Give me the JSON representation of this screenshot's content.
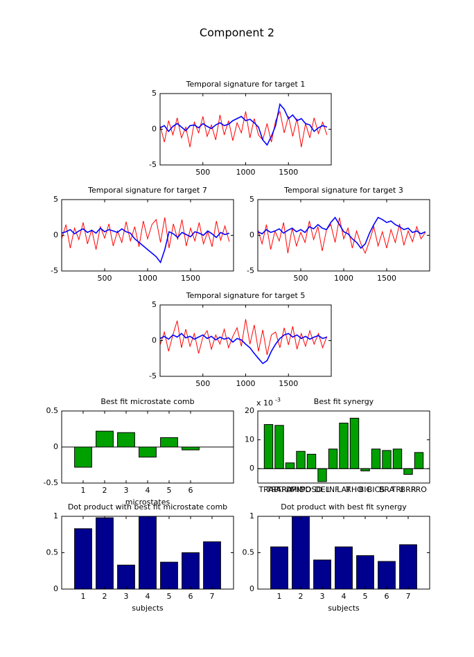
{
  "title": "Component 2",
  "chart_data": [
    {
      "type": "line",
      "title": "Temporal signature for target 1",
      "x": [
        0,
        50,
        100,
        150,
        200,
        250,
        300,
        350,
        400,
        450,
        500,
        550,
        600,
        650,
        700,
        750,
        800,
        850,
        900,
        950,
        1000,
        1050,
        1100,
        1150,
        1200,
        1250,
        1300,
        1350,
        1400,
        1450,
        1500,
        1550,
        1600,
        1650,
        1700,
        1750,
        1800,
        1850,
        1900,
        1950
      ],
      "xlim": [
        0,
        2000
      ],
      "xticks": [
        500,
        1000,
        1500
      ],
      "ylim": [
        -5,
        5
      ],
      "yticks": [
        -5,
        0,
        5
      ],
      "series": [
        {
          "color": "#ff0000",
          "values": [
            0.5,
            -1.8,
            1.2,
            -0.8,
            1.6,
            -1.2,
            0.3,
            -2.5,
            1.0,
            -0.5,
            1.8,
            -1.0,
            0.6,
            -1.5,
            2.0,
            -0.8,
            1.2,
            -1.6,
            0.9,
            -0.5,
            2.5,
            -1.2,
            1.5,
            -0.8,
            -1.5,
            0.8,
            -1.8,
            1.2,
            2.5,
            -0.5,
            1.8,
            -1.0,
            1.5,
            -2.5,
            0.8,
            -1.2,
            1.6,
            -0.6,
            1.0,
            -0.8
          ]
        },
        {
          "color": "#0000ff",
          "values": [
            0.2,
            0.5,
            -0.3,
            0.4,
            0.8,
            0.3,
            -0.2,
            0.5,
            0.6,
            0.2,
            0.8,
            0.4,
            0.1,
            0.6,
            0.9,
            0.5,
            0.7,
            1.2,
            1.5,
            1.8,
            1.2,
            1.4,
            0.9,
            0.3,
            -1.5,
            -2.2,
            -1.0,
            0.5,
            3.5,
            2.8,
            1.5,
            2.0,
            1.2,
            1.5,
            0.8,
            0.6,
            -0.3,
            0.2,
            0.5,
            0.3
          ]
        }
      ]
    },
    {
      "type": "line",
      "title": "Temporal signature for target 7",
      "x": [
        0,
        50,
        100,
        150,
        200,
        250,
        300,
        350,
        400,
        450,
        500,
        550,
        600,
        650,
        700,
        750,
        800,
        850,
        900,
        950,
        1000,
        1050,
        1100,
        1150,
        1200,
        1250,
        1300,
        1350,
        1400,
        1450,
        1500,
        1550,
        1600,
        1650,
        1700,
        1750,
        1800,
        1850,
        1900,
        1950
      ],
      "xlim": [
        0,
        2000
      ],
      "xticks": [
        500,
        1000,
        1500
      ],
      "ylim": [
        -5,
        5
      ],
      "yticks": [
        -5,
        0,
        5
      ],
      "series": [
        {
          "color": "#ff0000",
          "values": [
            -0.5,
            1.5,
            -1.8,
            1.0,
            -0.6,
            1.8,
            -1.2,
            0.8,
            -2.0,
            1.2,
            -0.4,
            1.6,
            -1.5,
            0.6,
            -1.0,
            1.9,
            -0.8,
            1.2,
            -1.6,
            2.0,
            -0.5,
            1.5,
            2.2,
            -1.0,
            2.5,
            -1.8,
            1.6,
            -0.6,
            2.2,
            -1.5,
            1.0,
            -0.8,
            1.8,
            -1.2,
            0.5,
            -1.6,
            2.0,
            -0.7,
            1.3,
            -0.9
          ]
        },
        {
          "color": "#0000ff",
          "values": [
            0.3,
            0.5,
            0.8,
            0.2,
            0.6,
            0.9,
            0.4,
            0.7,
            0.3,
            1.0,
            0.5,
            0.8,
            0.6,
            0.4,
            0.9,
            0.5,
            0.3,
            -0.5,
            -1.0,
            -1.5,
            -2.0,
            -2.5,
            -3.0,
            -3.8,
            -2.0,
            0.5,
            0.2,
            -0.3,
            0.4,
            0.1,
            -0.2,
            0.5,
            0.3,
            0.0,
            0.6,
            0.2,
            -0.3,
            0.4,
            0.1,
            0.3
          ]
        }
      ]
    },
    {
      "type": "line",
      "title": "Temporal signature for target 3",
      "x": [
        0,
        50,
        100,
        150,
        200,
        250,
        300,
        350,
        400,
        450,
        500,
        550,
        600,
        650,
        700,
        750,
        800,
        850,
        900,
        950,
        1000,
        1050,
        1100,
        1150,
        1200,
        1250,
        1300,
        1350,
        1400,
        1450,
        1500,
        1550,
        1600,
        1650,
        1700,
        1750,
        1800,
        1850,
        1900,
        1950
      ],
      "xlim": [
        0,
        2000
      ],
      "xticks": [
        500,
        1000,
        1500
      ],
      "ylim": [
        -5,
        5
      ],
      "yticks": [
        -5,
        0,
        5
      ],
      "series": [
        {
          "color": "#ff0000",
          "values": [
            0.8,
            -1.2,
            1.5,
            -2.0,
            0.6,
            -0.8,
            1.8,
            -2.5,
            1.0,
            -1.5,
            0.4,
            -1.0,
            2.0,
            -0.6,
            1.2,
            -2.2,
            0.8,
            1.5,
            -1.0,
            2.5,
            -0.5,
            1.0,
            -1.8,
            0.6,
            -1.2,
            -2.5,
            -0.8,
            1.2,
            -1.5,
            0.5,
            -1.8,
            0.8,
            -1.0,
            1.6,
            -1.4,
            0.6,
            -0.9,
            1.2,
            -0.5,
            0.4
          ]
        },
        {
          "color": "#0000ff",
          "values": [
            0.5,
            0.2,
            0.8,
            0.4,
            0.6,
            0.9,
            0.3,
            0.7,
            1.0,
            0.5,
            0.8,
            0.4,
            1.2,
            0.9,
            1.5,
            1.0,
            0.8,
            1.8,
            2.5,
            1.5,
            0.5,
            0.2,
            -0.5,
            -1.0,
            -1.8,
            -1.2,
            0.3,
            1.5,
            2.5,
            2.2,
            1.8,
            2.0,
            1.5,
            1.2,
            0.8,
            1.0,
            0.4,
            0.6,
            0.2,
            0.5
          ]
        }
      ]
    },
    {
      "type": "line",
      "title": "Temporal signature for target 5",
      "x": [
        0,
        50,
        100,
        150,
        200,
        250,
        300,
        350,
        400,
        450,
        500,
        550,
        600,
        650,
        700,
        750,
        800,
        850,
        900,
        950,
        1000,
        1050,
        1100,
        1150,
        1200,
        1250,
        1300,
        1350,
        1400,
        1450,
        1500,
        1550,
        1600,
        1650,
        1700,
        1750,
        1800,
        1850,
        1900,
        1950
      ],
      "xlim": [
        0,
        2000
      ],
      "xticks": [
        500,
        1000,
        1500
      ],
      "ylim": [
        -5,
        5
      ],
      "yticks": [
        -5,
        0,
        5
      ],
      "series": [
        {
          "color": "#ff0000",
          "values": [
            -0.6,
            1.2,
            -1.5,
            0.8,
            2.8,
            -1.0,
            1.6,
            -0.8,
            1.0,
            -1.8,
            0.5,
            1.4,
            -1.2,
            0.8,
            -0.5,
            1.6,
            -1.0,
            0.6,
            1.8,
            -0.8,
            3.0,
            -0.5,
            2.2,
            -1.5,
            1.5,
            -2.0,
            0.8,
            1.2,
            -1.0,
            1.8,
            -0.6,
            2.0,
            -1.2,
            1.0,
            -0.8,
            1.4,
            -0.5,
            1.0,
            -1.0,
            0.6
          ]
        },
        {
          "color": "#0000ff",
          "values": [
            0.3,
            0.6,
            0.2,
            0.8,
            0.5,
            1.0,
            0.4,
            0.6,
            0.2,
            0.5,
            0.8,
            0.3,
            0.6,
            0.1,
            0.5,
            0.2,
            0.4,
            -0.2,
            0.3,
            0.1,
            -0.5,
            -1.0,
            -1.8,
            -2.5,
            -3.2,
            -2.8,
            -1.5,
            -0.5,
            0.3,
            0.8,
            1.0,
            0.5,
            0.8,
            0.3,
            0.6,
            0.2,
            0.5,
            0.7,
            0.3,
            0.5
          ]
        }
      ]
    },
    {
      "type": "bar",
      "title": "Best fit microstate comb",
      "xlabel": "microstates",
      "x": [
        1,
        2,
        3,
        4,
        5,
        6
      ],
      "values": [
        -0.28,
        0.22,
        0.2,
        -0.14,
        0.13,
        -0.04
      ],
      "color": "#00a000",
      "xlim": [
        0,
        8
      ],
      "xticks": [
        1,
        2,
        3,
        4,
        5,
        6
      ],
      "ylim": [
        -0.5,
        0.5
      ],
      "yticks": [
        -0.5,
        0,
        0.5
      ]
    },
    {
      "type": "bar",
      "title": "Best fit synergy",
      "y_multiplier": {
        "base": "x 10",
        "exponent": "-3"
      },
      "categories": [
        "TRAP",
        "TRAPD",
        "TRAPM",
        "MIDD",
        "POSD",
        "DEL",
        "INF",
        "LAT",
        "RHO",
        "BIC",
        "BICS",
        "BRA",
        "TRI",
        "BRR",
        "PRO"
      ],
      "values": [
        15.3,
        15,
        2,
        6,
        5,
        -4.5,
        6.8,
        15.8,
        17.5,
        -0.8,
        6.8,
        6.3,
        6.8,
        -2,
        5.6
      ],
      "color": "#00a000",
      "xlim": [
        0,
        16
      ],
      "ylim": [
        -5,
        20
      ],
      "yticks": [
        0,
        10,
        20
      ]
    },
    {
      "type": "bar",
      "title": "Dot product with best fit microstate comb",
      "xlabel": "subjects",
      "x": [
        1,
        2,
        3,
        4,
        5,
        6,
        7
      ],
      "values": [
        0.83,
        0.98,
        0.33,
        1.0,
        0.37,
        0.5,
        0.65
      ],
      "color": "#00008f",
      "xlim": [
        0,
        8
      ],
      "xticks": [
        1,
        2,
        3,
        4,
        5,
        6,
        7
      ],
      "ylim": [
        0,
        1
      ],
      "yticks": [
        0,
        0.5,
        1
      ]
    },
    {
      "type": "bar",
      "title": "Dot product with best fit synergy",
      "xlabel": "subjects",
      "x": [
        1,
        2,
        3,
        4,
        5,
        6,
        7
      ],
      "values": [
        0.58,
        1.0,
        0.4,
        0.58,
        0.46,
        0.38,
        0.61
      ],
      "color": "#00008f",
      "xlim": [
        0,
        8
      ],
      "xticks": [
        1,
        2,
        3,
        4,
        5,
        6,
        7
      ],
      "ylim": [
        0,
        1
      ],
      "yticks": [
        0,
        0.5,
        1
      ]
    }
  ]
}
